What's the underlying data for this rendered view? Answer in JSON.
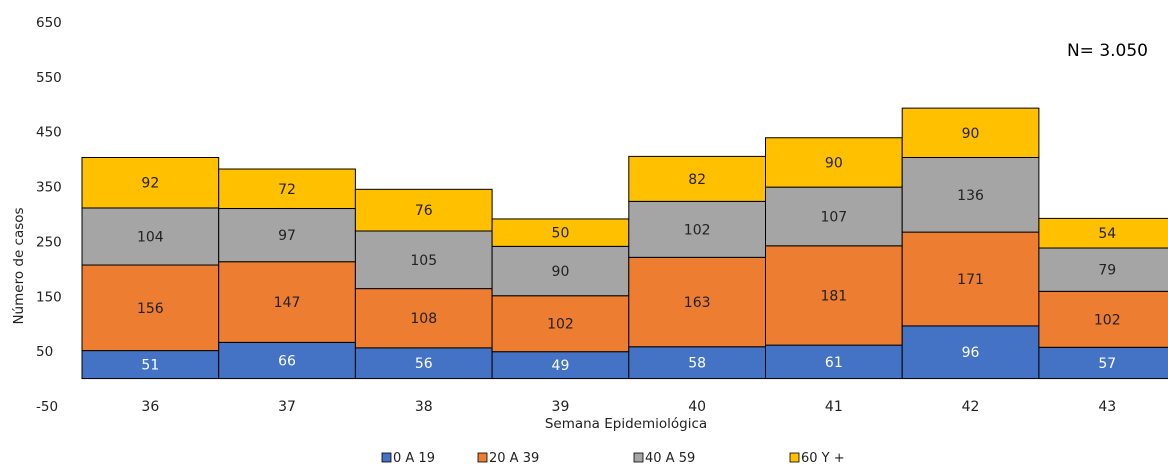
{
  "chart_data": {
    "type": "bar",
    "stacked": true,
    "categories": [
      "36",
      "37",
      "38",
      "39",
      "40",
      "41",
      "42",
      "43"
    ],
    "series": [
      {
        "name": "0 A 19",
        "color": "#4472C4",
        "values": [
          51,
          66,
          56,
          49,
          58,
          61,
          96,
          57
        ]
      },
      {
        "name": "20 A 39",
        "color": "#ED7D31",
        "values": [
          156,
          147,
          108,
          102,
          163,
          181,
          171,
          102
        ]
      },
      {
        "name": "40 A 59",
        "color": "#A5A5A5",
        "values": [
          104,
          97,
          105,
          90,
          102,
          107,
          136,
          79
        ]
      },
      {
        "name": "60 Y +",
        "color": "#FFC000",
        "values": [
          92,
          72,
          76,
          50,
          82,
          90,
          90,
          54
        ]
      }
    ],
    "xlabel": "Semana Epidemiológica",
    "ylabel": "Número de casos",
    "ylim": [
      -50,
      650
    ],
    "yticks": [
      -50,
      50,
      150,
      250,
      350,
      450,
      550,
      650
    ],
    "annotation": "N= 3.050",
    "legend_position": "bottom",
    "grid": false
  }
}
